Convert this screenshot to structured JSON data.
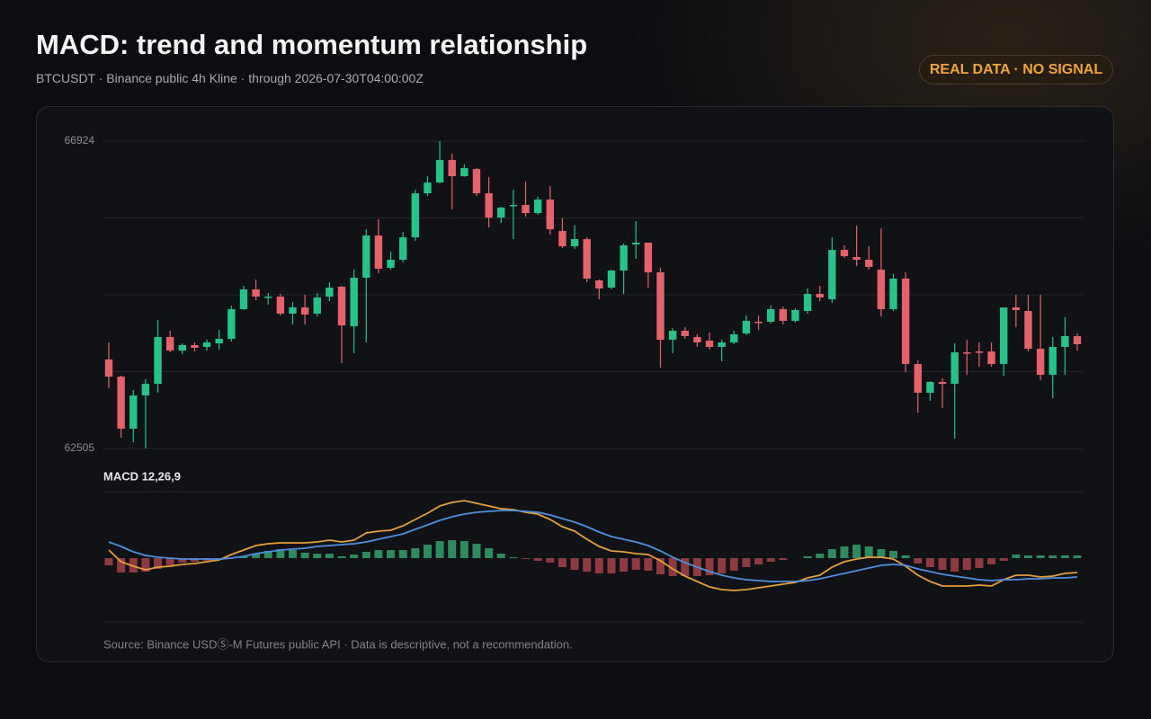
{
  "header": {
    "title": "MACD: trend and momentum relationship",
    "subtitle": "BTCUSDT · Binance public 4h Kline · through 2026-07-30T04:00:00Z",
    "badge": "REAL DATA · NO SIGNAL"
  },
  "chart_data": [
    {
      "type": "candlestick",
      "up_color": "#26c28a",
      "down_color": "#e5626b",
      "grid": true,
      "ylim": [
        62505,
        66924
      ],
      "yticks": [
        62505,
        {
          "value": 63610,
          "label": null
        },
        {
          "value": 64715,
          "label": null
        },
        {
          "value": 65819,
          "label": null
        },
        66924
      ],
      "open": [
        63784,
        63538,
        62789,
        63267,
        63435,
        64107,
        63913,
        63991,
        63965,
        64017,
        64081,
        64508,
        64792,
        64676,
        64688,
        64443,
        64533,
        64443,
        64688,
        64831,
        64262,
        64960,
        65567,
        65102,
        65218,
        65541,
        66174,
        66329,
        66652,
        66420,
        66523,
        66174,
        65825,
        65993,
        66006,
        65890,
        66084,
        65632,
        65412,
        65515,
        64921,
        64818,
        65063,
        65438,
        65464,
        65037,
        64068,
        64197,
        64107,
        64055,
        63965,
        64030,
        64159,
        64327,
        64327,
        64508,
        64340,
        64482,
        64727,
        64650,
        65360,
        65257,
        65218,
        65076,
        64508,
        64947,
        63719,
        63306,
        63461,
        63435,
        63887,
        63900,
        63900,
        63719,
        64533,
        64482,
        63939,
        63564,
        63965,
        64120
      ],
      "high": [
        64030,
        63551,
        63345,
        63500,
        64352,
        64197,
        64017,
        64030,
        64068,
        64210,
        64559,
        64843,
        64934,
        64740,
        64727,
        64611,
        64714,
        64740,
        64895,
        64843,
        65076,
        65657,
        65800,
        65334,
        65619,
        66226,
        66420,
        66924,
        66743,
        66588,
        66536,
        66407,
        65980,
        66226,
        66342,
        66123,
        66278,
        65812,
        65715,
        65541,
        64934,
        65076,
        65451,
        65774,
        65464,
        65102,
        64236,
        64249,
        64146,
        64172,
        64068,
        64197,
        64417,
        64417,
        64559,
        64546,
        64520,
        64805,
        64843,
        65541,
        65425,
        65709,
        65412,
        65670,
        65011,
        65037,
        63771,
        63474,
        63513,
        64017,
        64068,
        64030,
        64030,
        64533,
        64714,
        64714,
        64714,
        64107,
        64391,
        64159
      ],
      "low": [
        63371,
        62660,
        62595,
        62505,
        63306,
        63887,
        63862,
        63900,
        63913,
        63926,
        64042,
        64495,
        64637,
        64572,
        64417,
        64288,
        64288,
        64404,
        64624,
        63732,
        63874,
        64030,
        65024,
        65076,
        65179,
        65489,
        66135,
        66316,
        65942,
        66410,
        66135,
        65683,
        65748,
        65515,
        65838,
        65864,
        65580,
        65386,
        65373,
        64895,
        64650,
        64792,
        64727,
        65231,
        64818,
        63668,
        63874,
        64081,
        63965,
        63926,
        63758,
        64004,
        64133,
        64210,
        64301,
        64288,
        64314,
        64443,
        64624,
        64598,
        65244,
        65128,
        65076,
        64404,
        64482,
        63603,
        63022,
        63190,
        63086,
        62647,
        63564,
        63681,
        63681,
        63551,
        64249,
        63900,
        63487,
        63228,
        63564,
        63913
      ],
      "close": [
        63538,
        62789,
        63267,
        63435,
        64107,
        63913,
        63991,
        63952,
        64030,
        64081,
        64508,
        64792,
        64688,
        64688,
        64443,
        64533,
        64430,
        64676,
        64818,
        64275,
        64960,
        65567,
        65089,
        65218,
        65541,
        66174,
        66329,
        66652,
        66420,
        66536,
        66174,
        65825,
        65968,
        66006,
        65890,
        66084,
        65657,
        65412,
        65515,
        64947,
        64805,
        65063,
        65425,
        65464,
        65037,
        64068,
        64197,
        64120,
        64030,
        63965,
        64030,
        64146,
        64340,
        64314,
        64508,
        64340,
        64495,
        64727,
        64676,
        65360,
        65270,
        65218,
        65115,
        64508,
        64947,
        63719,
        63306,
        63461,
        63435,
        63887,
        63874,
        63887,
        63719,
        64533,
        64495,
        63939,
        63564,
        63965,
        64120,
        64004
      ]
    },
    {
      "type": "macd",
      "label": "MACD 12,26,9",
      "ylim": [
        -71,
        74
      ],
      "series": [
        {
          "color": "#e3a03c",
          "values": [
            9,
            -4,
            -9,
            -13,
            -10,
            -9,
            -7,
            -6,
            -4,
            -2,
            4,
            9,
            14,
            16,
            17,
            17,
            17,
            18,
            20,
            18,
            20,
            28,
            30,
            31,
            36,
            43,
            50,
            58,
            62,
            64,
            61,
            58,
            55,
            54,
            51,
            49,
            43,
            35,
            30,
            21,
            13,
            8,
            7,
            5,
            4,
            -3,
            -12,
            -20,
            -26,
            -32,
            -35,
            -36,
            -35,
            -33,
            -31,
            -29,
            -27,
            -22,
            -19,
            -10,
            -4,
            -1,
            1,
            1,
            -1,
            -9,
            -19,
            -26,
            -31,
            -31,
            -31,
            -30,
            -31,
            -24,
            -19,
            -19,
            -21,
            -20,
            -17,
            -16
          ]
        },
        {
          "color": "#4d8fdc",
          "values": [
            18,
            13,
            7,
            3,
            1,
            0,
            -1,
            -1,
            -1,
            -1,
            0,
            2,
            5,
            7,
            9,
            10,
            11,
            13,
            14,
            15,
            16,
            18,
            21,
            24,
            27,
            32,
            37,
            42,
            46,
            49,
            51,
            52,
            53,
            53,
            52,
            51,
            48,
            44,
            40,
            35,
            29,
            24,
            21,
            18,
            14,
            8,
            1,
            -5,
            -10,
            -15,
            -19,
            -22,
            -24,
            -25,
            -26,
            -26,
            -26,
            -25,
            -23,
            -20,
            -17,
            -14,
            -11,
            -8,
            -7,
            -8,
            -12,
            -15,
            -18,
            -20,
            -22,
            -24,
            -25,
            -24,
            -24,
            -23,
            -23,
            -22,
            -22,
            -21
          ]
        }
      ],
      "histogram": {
        "up_color": "#2e8a5f",
        "down_color": "#8e3a41",
        "values": [
          -8,
          -16,
          -16,
          -15,
          -12,
          -8,
          -5,
          -4,
          -3,
          -2,
          0,
          2,
          5,
          8,
          10,
          9,
          6,
          5,
          5,
          2,
          4,
          7,
          9,
          9,
          9,
          11,
          15,
          19,
          20,
          19,
          16,
          11,
          5,
          1,
          -1,
          -3,
          -5,
          -10,
          -13,
          -15,
          -17,
          -17,
          -15,
          -13,
          -14,
          -18,
          -20,
          -20,
          -20,
          -19,
          -17,
          -14,
          -10,
          -7,
          -4,
          -2,
          0,
          2,
          5,
          10,
          13,
          15,
          13,
          10,
          8,
          3,
          -6,
          -10,
          -13,
          -15,
          -13,
          -11,
          -7,
          -3,
          4,
          3,
          3,
          3,
          3,
          3
        ]
      }
    }
  ],
  "footer": "Source: Binance USDⓈ-M Futures public API · Data is descriptive, not a recommendation."
}
